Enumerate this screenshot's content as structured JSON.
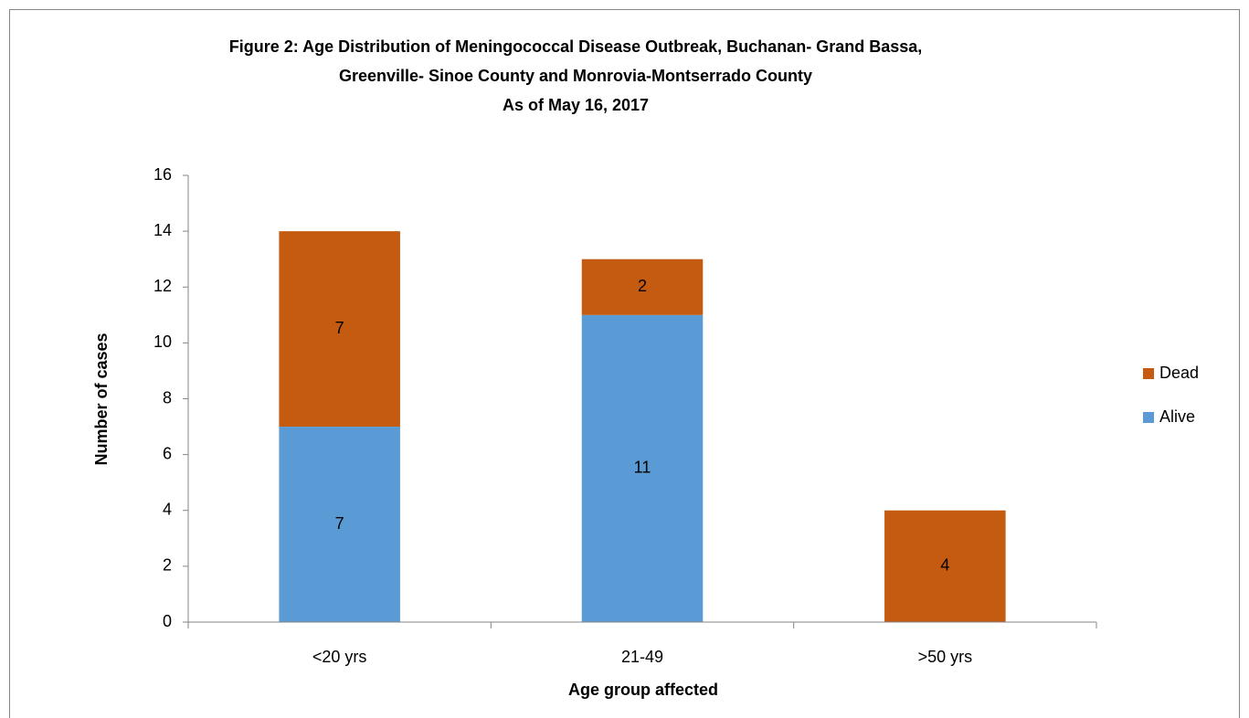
{
  "chart_data": {
    "type": "stacked_bar",
    "title": [
      "Figure 2: Age Distribution of Meningococcal Disease Outbreak, Buchanan- Grand Bassa,",
      "Greenville- Sinoe County and Monrovia-Montserrado County",
      "As of May 16, 2017"
    ],
    "x_label": "Age group affected",
    "y_label": "Number of cases",
    "categories": [
      "<20 yrs",
      "21-49",
      ">50 yrs"
    ],
    "series": [
      {
        "name": "Alive",
        "color": "#5b9bd5",
        "values": [
          7,
          11,
          0
        ]
      },
      {
        "name": "Dead",
        "color": "#c55a11",
        "values": [
          7,
          2,
          4
        ]
      }
    ],
    "ylim": [
      0,
      16
    ],
    "yticks": [
      0,
      2,
      4,
      6,
      8,
      10,
      12,
      14,
      16
    ],
    "grid": false,
    "legend": "right"
  }
}
